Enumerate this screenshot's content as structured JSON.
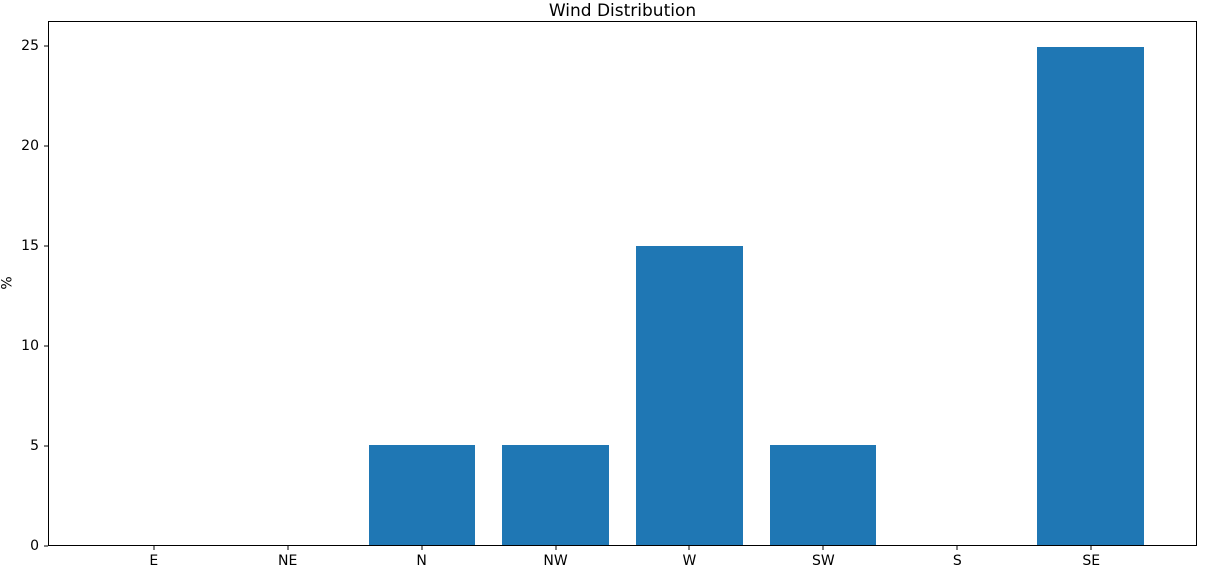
{
  "chart_data": {
    "type": "bar",
    "title": "Wind Distribution",
    "xlabel": "",
    "ylabel": "%",
    "categories": [
      "E",
      "NE",
      "N",
      "NW",
      "W",
      "SW",
      "S",
      "SE"
    ],
    "values": [
      0,
      0,
      5,
      5,
      15,
      5,
      0,
      25
    ],
    "yticks": [
      0,
      5,
      10,
      15,
      20,
      25
    ],
    "ylim": [
      0,
      26.25
    ],
    "xlim": [
      -0.79,
      7.79
    ],
    "bar_width": 0.8,
    "bar_color": "#1f77b4",
    "grid": false,
    "legend": "none",
    "background_color": "#ffffff",
    "spine_color": "#000000"
  }
}
